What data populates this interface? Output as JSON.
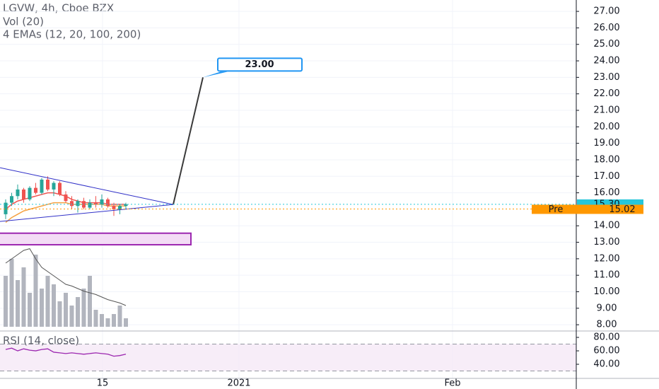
{
  "chart_data": {
    "type": "candlestick",
    "title": "LGVW, 4h, Cboe BZX",
    "indicator_labels": [
      "Vol (20)",
      "4 EMAs (12, 20, 100, 200)"
    ],
    "categories": [
      null,
      null,
      null,
      null,
      null,
      null,
      null,
      null,
      null,
      null,
      null,
      null,
      null,
      null,
      null,
      null,
      null,
      null,
      null,
      null,
      null
    ],
    "open": [
      14.7,
      15.4,
      15.8,
      16.2,
      15.6,
      16.3,
      16.0,
      16.8,
      16.2,
      16.6,
      15.9,
      15.5,
      15.2,
      15.5,
      15.1,
      15.4,
      15.3,
      15.6,
      15.2,
      15.0,
      15.2
    ],
    "high": [
      15.6,
      16.0,
      16.5,
      16.3,
      16.4,
      16.6,
      16.9,
      17.0,
      16.7,
      16.7,
      16.1,
      15.8,
      15.6,
      15.7,
      15.6,
      15.8,
      15.9,
      15.7,
      15.4,
      15.3,
      15.4
    ],
    "low": [
      14.4,
      15.2,
      15.6,
      15.4,
      15.5,
      15.9,
      15.9,
      16.1,
      15.8,
      15.8,
      15.4,
      15.0,
      14.8,
      15.0,
      15.0,
      15.1,
      15.1,
      15.1,
      14.6,
      14.7,
      15.0
    ],
    "close": [
      15.4,
      15.8,
      16.2,
      15.6,
      16.3,
      16.0,
      16.8,
      16.2,
      16.6,
      15.9,
      15.5,
      15.2,
      15.5,
      15.1,
      15.4,
      15.3,
      15.6,
      15.2,
      15.0,
      15.2,
      15.3
    ],
    "up_color": "#26a69a",
    "down_color": "#ef5350",
    "ema_series": [
      {
        "color": "#ef5350",
        "values": [
          15.0,
          15.3,
          15.5,
          15.6,
          15.7,
          15.8,
          15.9,
          16.0,
          16.0,
          15.9,
          15.8,
          15.6,
          15.5,
          15.4,
          15.4,
          15.4,
          15.4,
          15.3,
          15.3,
          15.3,
          15.3
        ]
      },
      {
        "color": "#f5a142",
        "values": [
          14.2,
          14.5,
          14.7,
          14.9,
          15.0,
          15.1,
          15.2,
          15.3,
          15.4,
          15.4,
          15.4,
          15.3,
          15.3,
          15.3,
          15.3,
          15.3,
          15.3,
          15.2,
          15.2,
          15.2,
          15.2
        ]
      }
    ],
    "volume": {
      "color": "#b2b5be",
      "values": [
        60,
        80,
        55,
        70,
        40,
        85,
        45,
        60,
        50,
        30,
        40,
        25,
        35,
        45,
        60,
        20,
        15,
        10,
        15,
        25,
        10
      ],
      "ma_color": "#555555",
      "ma_values": [
        75,
        80,
        85,
        90,
        92,
        80,
        70,
        65,
        60,
        55,
        50,
        48,
        45,
        42,
        40,
        38,
        35,
        32,
        30,
        28,
        25
      ]
    },
    "ylim": [
      7.62,
      27.69
    ],
    "yticks": [
      {
        "value": 27,
        "label": "27.00"
      },
      {
        "value": 26,
        "label": "26.00"
      },
      {
        "value": 25,
        "label": "25.00"
      },
      {
        "value": 24,
        "label": "24.00"
      },
      {
        "value": 23,
        "label": "23.00"
      },
      {
        "value": 22,
        "label": "22.00"
      },
      {
        "value": 21,
        "label": "21.00"
      },
      {
        "value": 20,
        "label": "20.00"
      },
      {
        "value": 19,
        "label": "19.00"
      },
      {
        "value": 18,
        "label": "18.00"
      },
      {
        "value": 17,
        "label": "17.00"
      },
      {
        "value": 16,
        "label": "16.00"
      },
      {
        "value": 14,
        "label": "14.00"
      },
      {
        "value": 13,
        "label": "13.00"
      },
      {
        "value": 12,
        "label": "12.00"
      },
      {
        "value": 11,
        "label": "11.00"
      },
      {
        "value": 10,
        "label": "10.00"
      },
      {
        "value": 9,
        "label": "9.00"
      },
      {
        "value": 8,
        "label": "8.00"
      }
    ],
    "last_price": {
      "value": 15.3,
      "label": "15.30",
      "color": "#26c6da"
    },
    "pre_market": {
      "text": "Pre",
      "value": 15.02,
      "label": "15.02",
      "color": "#ff9800"
    },
    "drawings": {
      "triangle_upper": [
        17.52,
        15.29
      ],
      "triangle_lower": [
        14.26,
        15.29
      ],
      "projection": {
        "from": 15.29,
        "to": 23.0,
        "label": "23.00"
      },
      "zone": [
        12.85,
        13.55
      ]
    },
    "rsi": {
      "title": "RSI (14, close)",
      "color": "#9c27b0",
      "values": [
        62,
        64,
        60,
        63,
        61,
        60,
        62,
        63,
        58,
        57,
        56,
        57,
        56,
        55,
        56,
        57,
        56,
        55,
        52,
        53,
        55
      ],
      "ylim": [
        19,
        89.5
      ],
      "yticks": [
        {
          "value": 80,
          "label": "80.00"
        },
        {
          "value": 60,
          "label": "60.00"
        },
        {
          "value": 40,
          "label": "40.00"
        }
      ],
      "bands": [
        70,
        30
      ]
    },
    "x_labels": [
      "15",
      "2021",
      "Feb"
    ]
  }
}
